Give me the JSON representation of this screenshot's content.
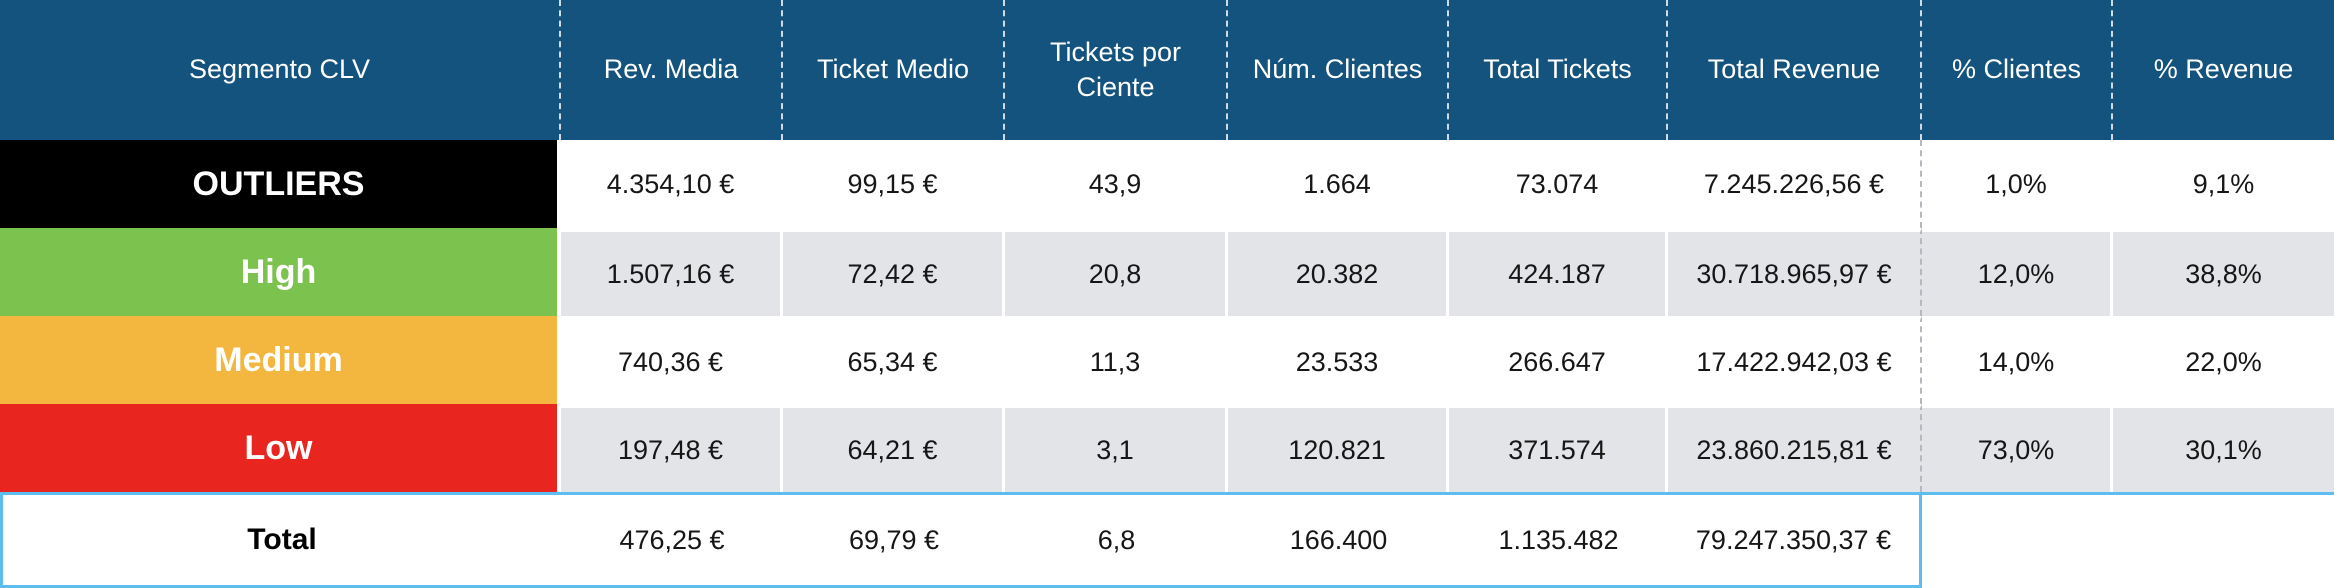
{
  "colors": {
    "header-bg": "#14537D",
    "stripe": "#E3E4E8",
    "accent": "#5BBEEF",
    "text": "#161616"
  },
  "chart_data": {
    "type": "table",
    "columns": [
      "Segmento CLV",
      "Rev. Media",
      "Ticket Medio",
      "Tickets por Ciente",
      "Núm. Clientes",
      "Total Tickets",
      "Total Revenue",
      "% Clientes",
      "% Revenue"
    ],
    "rows": [
      {
        "label": "OUTLIERS",
        "row_color": "#000000",
        "values": [
          "4.354,10 €",
          "99,15 €",
          "43,9",
          "1.664",
          "73.074",
          "7.245.226,56 €",
          "1,0%",
          "9,1%"
        ]
      },
      {
        "label": "High",
        "row_color": "#7CC24F",
        "values": [
          "1.507,16 €",
          "72,42 €",
          "20,8",
          "20.382",
          "424.187",
          "30.718.965,97 €",
          "12,0%",
          "38,8%"
        ]
      },
      {
        "label": "Medium",
        "row_color": "#F3B63F",
        "values": [
          "740,36 €",
          "65,34 €",
          "11,3",
          "23.533",
          "266.647",
          "17.422.942,03 €",
          "14,0%",
          "22,0%"
        ]
      },
      {
        "label": "Low",
        "row_color": "#E9251F",
        "values": [
          "197,48 €",
          "64,21 €",
          "3,1",
          "120.821",
          "371.574",
          "23.860.215,81 €",
          "73,0%",
          "30,1%"
        ]
      }
    ],
    "total": {
      "label": "Total",
      "values": [
        "476,25 €",
        "69,79 €",
        "6,8",
        "166.400",
        "1.135.482",
        "79.247.350,37 €",
        "",
        ""
      ]
    }
  }
}
